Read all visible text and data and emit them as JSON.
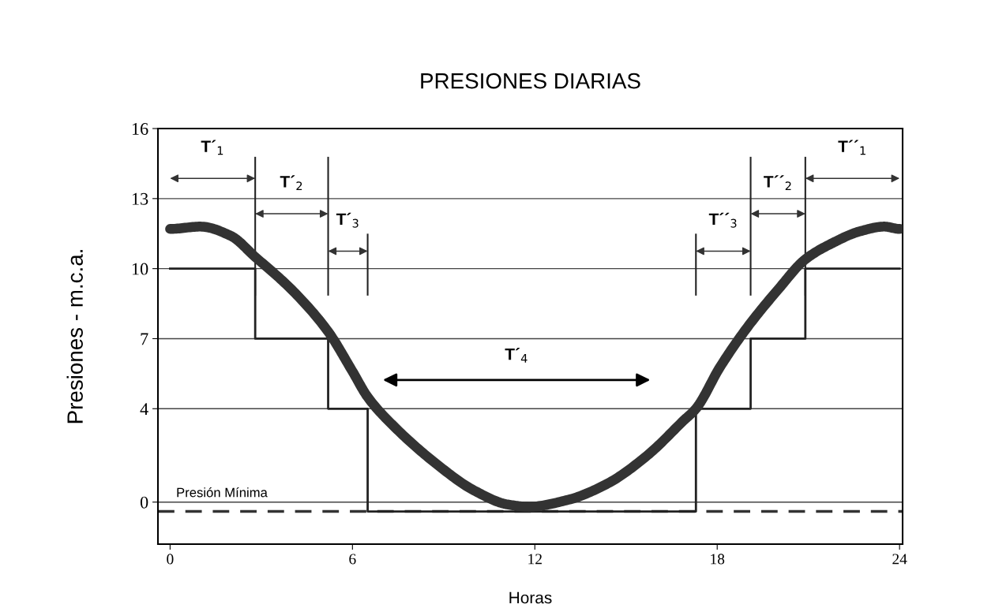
{
  "chart_data": {
    "type": "line",
    "title": "PRESIONES DIARIAS",
    "xlabel": "Horas",
    "ylabel": "Presiones - m.c.a.",
    "xlim": [
      -0.4,
      24.1
    ],
    "xticks": [
      0,
      6,
      12,
      18,
      24
    ],
    "ylim": [
      -1.8,
      16
    ],
    "yticks": [
      0,
      4,
      7,
      10,
      13,
      16
    ],
    "grid": "y",
    "marker": "none",
    "series": [
      {
        "color": "#333333",
        "x": [
          0,
          1,
          2,
          2.8,
          4,
          5.2,
          6,
          6.5,
          7.4,
          8.7,
          10,
          11.1,
          11.8,
          13.1,
          14.4,
          15.7,
          16.9,
          17.3,
          18.1,
          19,
          20,
          20.9,
          21.8,
          22.7,
          23.5,
          24
        ],
        "values": [
          11.7,
          11.8,
          11.4,
          10.5,
          9.1,
          7.3,
          5.6,
          4.5,
          3.2,
          1.7,
          0.5,
          -0.1,
          -0.2,
          0.1,
          0.8,
          2,
          3.5,
          4.0,
          5.8,
          7.5,
          9.1,
          10.4,
          11.1,
          11.6,
          11.8,
          11.7
        ]
      },
      {
        "type": "step",
        "color": "#222222",
        "x": [
          0,
          2.8,
          5.2,
          6.5,
          17.3,
          19.1,
          20.9,
          24
        ],
        "values": [
          10,
          7,
          4,
          -0.4,
          4,
          7,
          10,
          10
        ]
      }
    ],
    "ref_lines": [
      {
        "axis": "y",
        "value": -0.4,
        "label": "Presión Mínima",
        "color": "#333333",
        "line_style": "dashed"
      }
    ],
    "annotations": [
      "T´$_{1}$",
      "T´$_{2}$",
      "T´$_{3}$",
      "T´$_{4}$",
      "T´´$_{3}$",
      "T´´$_{2}$",
      "T´´$_{1}$"
    ]
  }
}
